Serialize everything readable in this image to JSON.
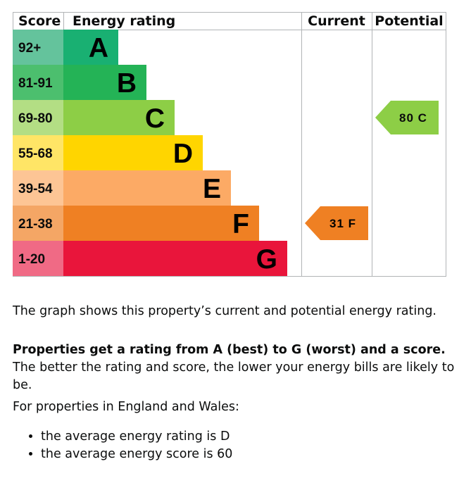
{
  "chart_data": {
    "type": "bar",
    "columns": {
      "score": "Score",
      "rating": "Energy rating",
      "current": "Current",
      "potential": "Potential"
    },
    "bands": [
      {
        "range": "92+",
        "letter": "A",
        "color": "#19b072",
        "score_bg": "#64c39c"
      },
      {
        "range": "81-91",
        "letter": "B",
        "color": "#24b356",
        "score_bg": "#4cbf6e"
      },
      {
        "range": "69-80",
        "letter": "C",
        "color": "#8dce46",
        "score_bg": "#b3de84"
      },
      {
        "range": "55-68",
        "letter": "D",
        "color": "#ffd500",
        "score_bg": "#ffe566"
      },
      {
        "range": "39-54",
        "letter": "E",
        "color": "#fcaa65",
        "score_bg": "#fdc595"
      },
      {
        "range": "21-38",
        "letter": "F",
        "color": "#ef8023",
        "score_bg": "#f4a665"
      },
      {
        "range": "1-20",
        "letter": "G",
        "color": "#e9153b",
        "score_bg": "#f06a85"
      }
    ],
    "current": {
      "score": 31,
      "letter": "F",
      "label": "31 F",
      "color": "#ef8023"
    },
    "potential": {
      "score": 80,
      "letter": "C",
      "label": "80 C",
      "color": "#8dce46"
    }
  },
  "text": {
    "graph_desc": "The graph shows this property’s current and potential energy rating.",
    "rating_bold": "Properties get a rating from A (best) to G (worst) and a score.",
    "rating_rest": " The better the rating and score, the lower your energy bills are likely to be.",
    "regions": "For properties in England and Wales:",
    "bullets": [
      "the average energy rating is D",
      "the average energy score is 60"
    ]
  }
}
